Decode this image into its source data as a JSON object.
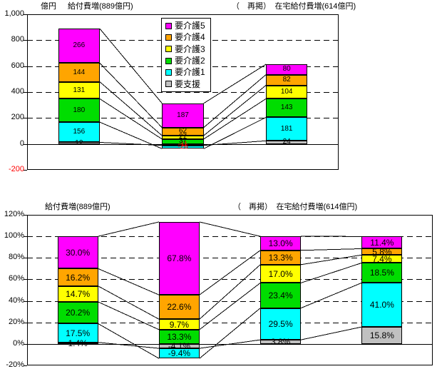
{
  "chart_data": [
    {
      "type": "bar",
      "subtype": "stacked-column-with-series-lines",
      "name": "benefit-increase-amount-chart",
      "unit_label": "億円",
      "title_left": "給付費増(889億円)",
      "title_right": "（　再掲）　在宅給付費増(614億円)",
      "ylim": [
        -200,
        1000
      ],
      "grid": "dashed-horizontal",
      "legend_position": "top-right-inside",
      "negative_label_color": "#FF0000",
      "yticks": [
        {
          "label": "1,000",
          "value": 1000,
          "color": "#000000"
        },
        {
          "label": "800",
          "value": 800,
          "color": "#000000"
        },
        {
          "label": "600",
          "value": 600,
          "color": "#000000"
        },
        {
          "label": "400",
          "value": 400,
          "color": "#000000"
        },
        {
          "label": "200",
          "value": 200,
          "color": "#000000"
        },
        {
          "label": "0",
          "value": 0,
          "color": "#000000"
        },
        {
          "label": "-200",
          "value": -200,
          "color": "#FF0000"
        }
      ],
      "series": [
        {
          "name": "要支援",
          "color": "#C0C0C0",
          "values": [
            12,
            -11,
            24
          ],
          "labels": [
            "12",
            "-11",
            "24"
          ]
        },
        {
          "name": "要介護1",
          "color": "#00FFFF",
          "values": [
            156,
            -26,
            181
          ],
          "labels": [
            "156",
            "-26",
            "181"
          ]
        },
        {
          "name": "要介護2",
          "color": "#00DD00",
          "values": [
            180,
            37,
            143
          ],
          "labels": [
            "180",
            "37",
            "143"
          ]
        },
        {
          "name": "要介護3",
          "color": "#FFFF00",
          "values": [
            131,
            27,
            104
          ],
          "labels": [
            "131",
            "27",
            "104"
          ]
        },
        {
          "name": "要介護4",
          "color": "#FFA500",
          "values": [
            144,
            62,
            82
          ],
          "labels": [
            "144",
            "62",
            "82"
          ]
        },
        {
          "name": "要介護5",
          "color": "#FF00FF",
          "values": [
            266,
            187,
            80
          ],
          "labels": [
            "266",
            "187",
            "80"
          ]
        }
      ]
    },
    {
      "type": "bar",
      "subtype": "stacked-column-with-series-lines",
      "name": "benefit-increase-percent-chart",
      "title_left": "給付費増(889億円)",
      "title_right": "（　再掲）　在宅給付費増(614億円)",
      "ylim": [
        -20,
        120
      ],
      "grid": "dashed-horizontal",
      "negative_label_color": "#000000",
      "yticks": [
        {
          "label": "120%",
          "value": 120,
          "color": "#000000"
        },
        {
          "label": "100%",
          "value": 100,
          "color": "#000000"
        },
        {
          "label": "80%",
          "value": 80,
          "color": "#000000"
        },
        {
          "label": "60%",
          "value": 60,
          "color": "#000000"
        },
        {
          "label": "40%",
          "value": 40,
          "color": "#000000"
        },
        {
          "label": "20%",
          "value": 20,
          "color": "#000000"
        },
        {
          "label": "0%",
          "value": 0,
          "color": "#000000"
        },
        {
          "label": "-20%",
          "value": -20,
          "color": "#000000"
        }
      ],
      "series": [
        {
          "name": "要支援",
          "color": "#C0C0C0",
          "values": [
            1.4,
            -4.1,
            3.8,
            15.8
          ],
          "labels": [
            "1.4%",
            "-4.1%",
            "3.8%",
            "15.8%"
          ]
        },
        {
          "name": "要介護1",
          "color": "#00FFFF",
          "values": [
            17.5,
            -9.4,
            29.5,
            41.0
          ],
          "labels": [
            "17.5%",
            "-9.4%",
            "29.5%",
            "41.0%"
          ]
        },
        {
          "name": "要介護2",
          "color": "#00DD00",
          "values": [
            20.2,
            13.3,
            23.4,
            18.5
          ],
          "labels": [
            "20.2%",
            "13.3%",
            "23.4%",
            "18.5%"
          ]
        },
        {
          "name": "要介護3",
          "color": "#FFFF00",
          "values": [
            14.7,
            9.7,
            17.0,
            7.4
          ],
          "labels": [
            "14.7%",
            "9.7%",
            "17.0%",
            "7.4%"
          ]
        },
        {
          "name": "要介護4",
          "color": "#FFA500",
          "values": [
            16.2,
            22.6,
            13.3,
            5.8
          ],
          "labels": [
            "16.2%",
            "22.6%",
            "13.3%",
            "5.8%"
          ]
        },
        {
          "name": "要介護5",
          "color": "#FF00FF",
          "values": [
            30.0,
            67.8,
            13.0,
            11.4
          ],
          "labels": [
            "30.0%",
            "67.8%",
            "13.0%",
            "11.4%"
          ]
        }
      ]
    }
  ]
}
